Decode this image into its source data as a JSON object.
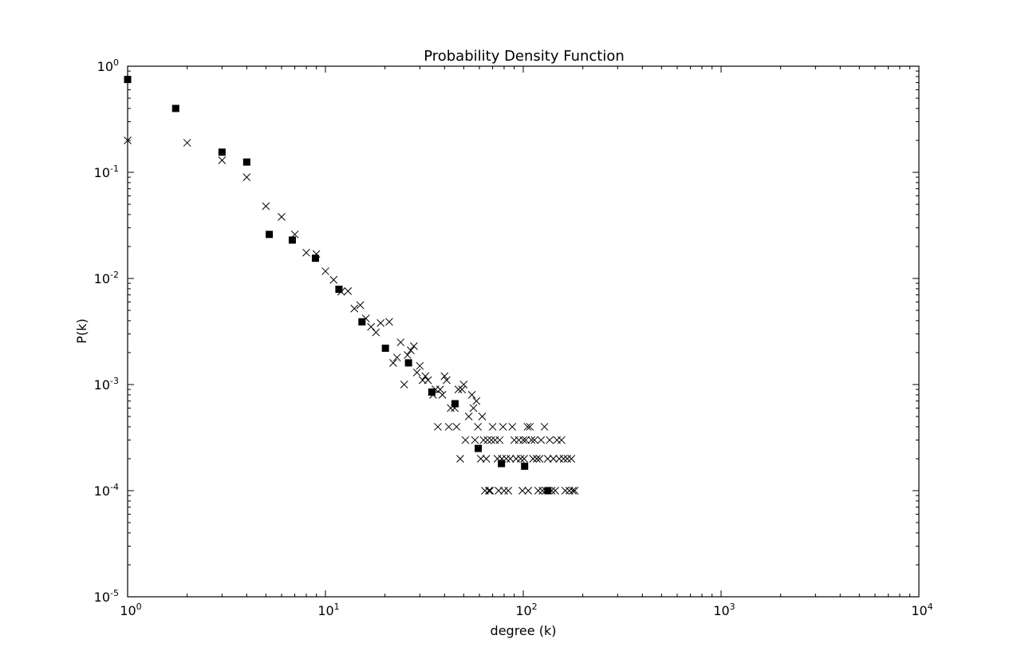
{
  "chart_data": {
    "type": "scatter",
    "title": "Probability Density Function",
    "xlabel": "degree (k)",
    "ylabel": "P(k)",
    "xscale": "log",
    "yscale": "log",
    "xlim": [
      1,
      10000
    ],
    "ylim": [
      1e-05,
      1
    ],
    "grid": false,
    "x_ticks": [
      {
        "value": 1,
        "base": "10",
        "exp": "0"
      },
      {
        "value": 10,
        "base": "10",
        "exp": "1"
      },
      {
        "value": 100,
        "base": "10",
        "exp": "2"
      },
      {
        "value": 1000,
        "base": "10",
        "exp": "3"
      },
      {
        "value": 10000,
        "base": "10",
        "exp": "4"
      }
    ],
    "y_ticks": [
      {
        "value": 1e-05,
        "base": "10",
        "exp": "-5"
      },
      {
        "value": 0.0001,
        "base": "10",
        "exp": "-4"
      },
      {
        "value": 0.001,
        "base": "10",
        "exp": "-3"
      },
      {
        "value": 0.01,
        "base": "10",
        "exp": "-2"
      },
      {
        "value": 0.1,
        "base": "10",
        "exp": "-1"
      },
      {
        "value": 1,
        "base": "10",
        "exp": "0"
      }
    ],
    "series": [
      {
        "marker": "x",
        "color": "#000000",
        "points": [
          [
            1,
            0.2
          ],
          [
            2,
            0.19
          ],
          [
            3,
            0.13
          ],
          [
            4,
            0.09
          ],
          [
            5,
            0.048
          ],
          [
            6,
            0.038
          ],
          [
            7,
            0.026
          ],
          [
            8,
            0.0175
          ],
          [
            9,
            0.017
          ],
          [
            10,
            0.0117
          ],
          [
            11,
            0.0097
          ],
          [
            12,
            0.0075
          ],
          [
            13,
            0.0076
          ],
          [
            14,
            0.0052
          ],
          [
            15,
            0.0056
          ],
          [
            16,
            0.0042
          ],
          [
            17,
            0.0035
          ],
          [
            18,
            0.0031
          ],
          [
            19,
            0.0038
          ],
          [
            21,
            0.0039
          ],
          [
            22,
            0.0016
          ],
          [
            23,
            0.0018
          ],
          [
            24,
            0.0025
          ],
          [
            25,
            0.001
          ],
          [
            26,
            0.0019
          ],
          [
            27,
            0.0021
          ],
          [
            28,
            0.0023
          ],
          [
            29,
            0.0013
          ],
          [
            30,
            0.0015
          ],
          [
            31,
            0.0011
          ],
          [
            32,
            0.0012
          ],
          [
            33,
            0.0011
          ],
          [
            35,
            0.0008
          ],
          [
            36,
            0.0009
          ],
          [
            37,
            0.0004
          ],
          [
            38,
            0.0009
          ],
          [
            39,
            0.0008
          ],
          [
            40,
            0.0012
          ],
          [
            41,
            0.0011
          ],
          [
            42,
            0.0004
          ],
          [
            43,
            0.0006
          ],
          [
            45,
            0.0006
          ],
          [
            46,
            0.0004
          ],
          [
            47,
            0.0009
          ],
          [
            48,
            0.0002
          ],
          [
            49,
            0.0009
          ],
          [
            50,
            0.001
          ],
          [
            51,
            0.0003
          ],
          [
            53,
            0.0005
          ],
          [
            55,
            0.0008
          ],
          [
            56,
            0.0006
          ],
          [
            57,
            0.0003
          ],
          [
            58,
            0.0007
          ],
          [
            59,
            0.0004
          ],
          [
            61,
            0.0002
          ],
          [
            62,
            0.0005
          ],
          [
            63,
            0.0003
          ],
          [
            64,
            0.0001
          ],
          [
            65,
            0.0002
          ],
          [
            66,
            0.0003
          ],
          [
            67,
            0.0001
          ],
          [
            68,
            0.0001
          ],
          [
            69,
            0.0003
          ],
          [
            70,
            0.0004
          ],
          [
            72,
            0.0003
          ],
          [
            74,
            0.0002
          ],
          [
            75,
            0.0001
          ],
          [
            76,
            0.0003
          ],
          [
            78,
            0.0002
          ],
          [
            79,
            0.0004
          ],
          [
            80,
            0.0001
          ],
          [
            82,
            0.0002
          ],
          [
            84,
            0.0001
          ],
          [
            86,
            0.0002
          ],
          [
            88,
            0.0004
          ],
          [
            90,
            0.0003
          ],
          [
            92,
            0.0002
          ],
          [
            95,
            0.0003
          ],
          [
            97,
            0.0002
          ],
          [
            99,
            0.0001
          ],
          [
            100,
            0.0003
          ],
          [
            101,
            0.0002
          ],
          [
            103,
            0.0003
          ],
          [
            105,
            0.0004
          ],
          [
            106,
            0.0001
          ],
          [
            108,
            0.0004
          ],
          [
            110,
            0.0003
          ],
          [
            112,
            0.0002
          ],
          [
            114,
            0.0003
          ],
          [
            117,
            0.0002
          ],
          [
            119,
            0.0001
          ],
          [
            121,
            0.0002
          ],
          [
            123,
            0.0003
          ],
          [
            125,
            0.0001
          ],
          [
            128,
            0.0004
          ],
          [
            130,
            0.0001
          ],
          [
            133,
            0.0002
          ],
          [
            136,
            0.0003
          ],
          [
            139,
            0.0001
          ],
          [
            142,
            0.0002
          ],
          [
            145,
            0.0001
          ],
          [
            148,
            0.0003
          ],
          [
            152,
            0.0002
          ],
          [
            156,
            0.0003
          ],
          [
            160,
            0.0002
          ],
          [
            163,
            0.0001
          ],
          [
            167,
            0.0002
          ],
          [
            171,
            0.0001
          ],
          [
            175,
            0.0002
          ],
          [
            178,
            0.0001
          ],
          [
            182,
            0.0001
          ]
        ]
      },
      {
        "marker": "square",
        "color": "#000000",
        "points": [
          [
            1,
            0.75
          ],
          [
            1.75,
            0.4
          ],
          [
            3,
            0.155
          ],
          [
            4,
            0.125
          ],
          [
            5.2,
            0.026
          ],
          [
            6.8,
            0.023
          ],
          [
            8.9,
            0.0155
          ],
          [
            11.7,
            0.0079
          ],
          [
            15.3,
            0.0039
          ],
          [
            20.1,
            0.0022
          ],
          [
            26.3,
            0.0016
          ],
          [
            34.5,
            0.00085
          ],
          [
            45.2,
            0.00066
          ],
          [
            59.2,
            0.00025
          ],
          [
            77.6,
            0.00018
          ],
          [
            101.6,
            0.00017
          ],
          [
            133.1,
            0.0001
          ]
        ]
      }
    ]
  }
}
